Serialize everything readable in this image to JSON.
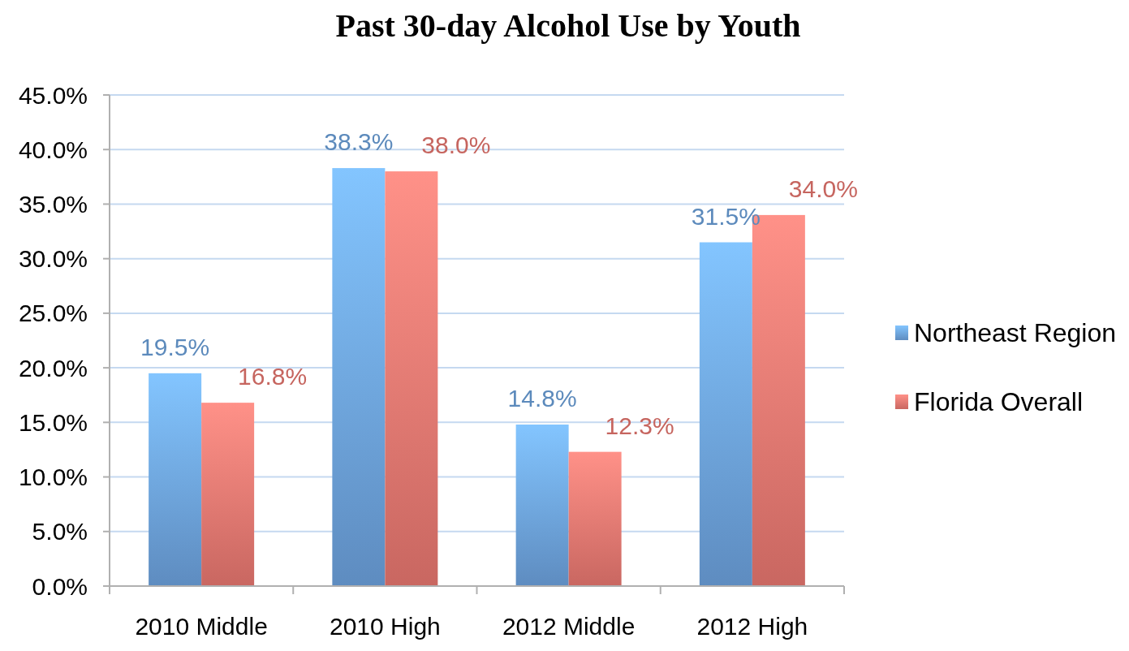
{
  "chart_data": {
    "type": "bar",
    "title": "Past 30-day Alcohol Use by Youth",
    "categories": [
      "2010 Middle",
      "2010 High",
      "2012 Middle",
      "2012 High"
    ],
    "series": [
      {
        "name": "Northeast Region",
        "color": "#6a9fd9",
        "values": [
          19.5,
          38.3,
          14.8,
          31.5
        ],
        "value_labels": [
          "19.5%",
          "38.3%",
          "14.8%",
          "31.5%"
        ]
      },
      {
        "name": "Florida Overall",
        "color": "#e4756e",
        "values": [
          16.8,
          38.0,
          12.3,
          34.0
        ],
        "value_labels": [
          "16.8%",
          "38.0%",
          "12.3%",
          "34.0%"
        ]
      }
    ],
    "ylim": [
      0,
      45
    ],
    "yticks": [
      {
        "value": 0,
        "label": "0.0%"
      },
      {
        "value": 5,
        "label": "5.0%"
      },
      {
        "value": 10,
        "label": "10.0%"
      },
      {
        "value": 15,
        "label": "15.0%"
      },
      {
        "value": 20,
        "label": "20.0%"
      },
      {
        "value": 25,
        "label": "25.0%"
      },
      {
        "value": 30,
        "label": "30.0%"
      },
      {
        "value": 35,
        "label": "35.0%"
      },
      {
        "value": 40,
        "label": "40.0%"
      },
      {
        "value": 45,
        "label": "45.0%"
      }
    ],
    "grid": "y",
    "legend": "right"
  }
}
